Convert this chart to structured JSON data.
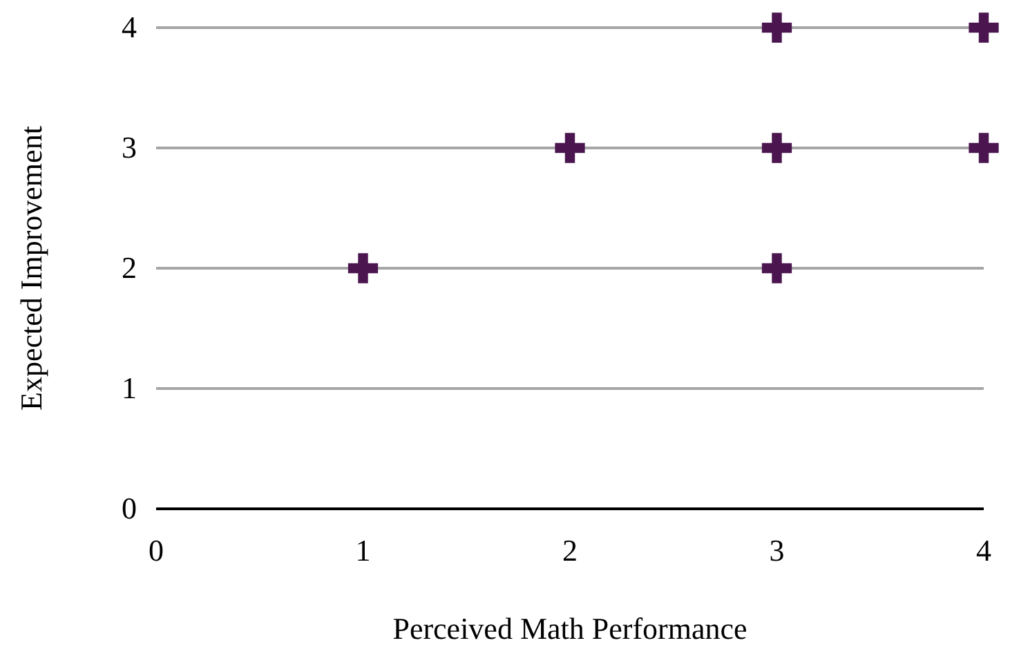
{
  "chart_data": {
    "type": "scatter",
    "xlabel": "Perceived Math Performance",
    "ylabel": "Expected Improvement",
    "x": [
      1,
      2,
      3,
      3,
      3,
      4,
      4
    ],
    "series": [
      {
        "color": "#4b1650",
        "values": [
          2,
          3,
          2,
          3,
          4,
          3,
          4
        ]
      }
    ],
    "xlim": [
      0,
      4
    ],
    "ylim": [
      0,
      4
    ],
    "xticks": [
      0,
      1,
      2,
      3,
      4
    ],
    "yticks": [
      0,
      1,
      2,
      3,
      4
    ],
    "grid": "y",
    "marker": "cross"
  }
}
